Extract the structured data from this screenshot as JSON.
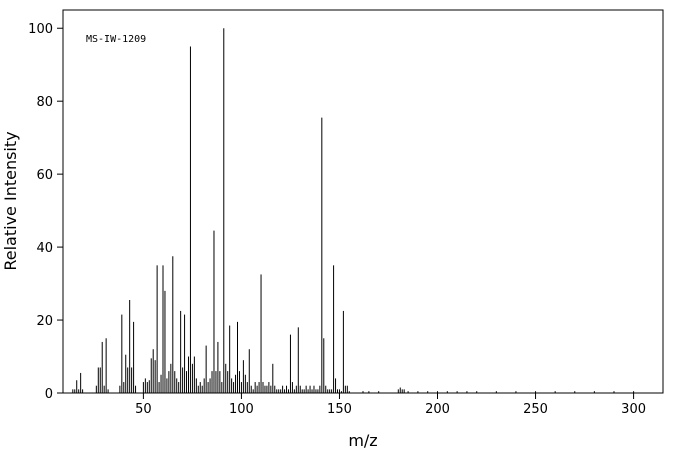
{
  "chart_data": {
    "type": "bar",
    "annotation": "MS-IW-1209",
    "x_label": "m/z",
    "y_label": "Relative Intensity",
    "color": "#000000",
    "xlim": [
      9,
      315
    ],
    "ylim": [
      0,
      105
    ],
    "xticks": [
      50,
      100,
      150,
      200,
      250,
      300
    ],
    "yticks": [
      0,
      20,
      40,
      60,
      80,
      100
    ],
    "x": [
      14,
      15,
      16,
      17,
      18,
      19,
      26,
      27,
      28,
      29,
      30,
      31,
      32,
      38,
      39,
      40,
      41,
      42,
      43,
      44,
      45,
      46,
      50,
      51,
      52,
      53,
      54,
      55,
      56,
      57,
      58,
      59,
      60,
      61,
      62,
      63,
      64,
      65,
      66,
      67,
      68,
      69,
      70,
      71,
      72,
      73,
      74,
      75,
      76,
      77,
      78,
      79,
      80,
      81,
      82,
      83,
      84,
      85,
      86,
      87,
      88,
      89,
      90,
      91,
      92,
      93,
      94,
      95,
      96,
      97,
      98,
      99,
      100,
      101,
      102,
      103,
      104,
      105,
      106,
      107,
      108,
      109,
      110,
      111,
      112,
      113,
      114,
      115,
      116,
      117,
      118,
      119,
      120,
      121,
      122,
      123,
      124,
      125,
      126,
      127,
      128,
      129,
      130,
      131,
      132,
      133,
      134,
      135,
      136,
      137,
      138,
      139,
      140,
      141,
      142,
      143,
      144,
      145,
      146,
      147,
      148,
      149,
      150,
      151,
      152,
      153,
      154,
      155,
      162,
      165,
      170,
      180,
      181,
      182,
      183,
      185,
      190,
      195,
      200,
      205,
      210,
      215,
      220,
      230,
      240,
      250,
      260,
      270,
      280,
      290,
      300
    ],
    "values": [
      1,
      1,
      3.5,
      1,
      5.5,
      1,
      2,
      7,
      7,
      14,
      2,
      15,
      1,
      2,
      21.5,
      3,
      10.5,
      7,
      25.5,
      7,
      19.5,
      2,
      3,
      4,
      3,
      3.5,
      9.5,
      12,
      9,
      35,
      3,
      5,
      35,
      28,
      4,
      6,
      8,
      37.5,
      6,
      4,
      3,
      22.5,
      7,
      21.5,
      6,
      10,
      95,
      8,
      10,
      4,
      2,
      3,
      2,
      4,
      13,
      3,
      4,
      6,
      44.5,
      6,
      14,
      6,
      3,
      100,
      8,
      6,
      18.5,
      4,
      3,
      5,
      19.5,
      6,
      3,
      9,
      5,
      3,
      12,
      2,
      1,
      3,
      2,
      3,
      32.5,
      3,
      2,
      2,
      3,
      2,
      8,
      2,
      1,
      1,
      1,
      2,
      1,
      2,
      1,
      16,
      3,
      1,
      2,
      18,
      2,
      1,
      1,
      2,
      1,
      2,
      1,
      2,
      1,
      1,
      2,
      75.5,
      15,
      2,
      1,
      1,
      1,
      35,
      4,
      1,
      1,
      0.5,
      22.5,
      2,
      2,
      0.5,
      0.5,
      0.5,
      0.5,
      1,
      1.5,
      1,
      1,
      0.5,
      0.5,
      0.5,
      0.5,
      0.5,
      0.5,
      0.5,
      0.5,
      0.5,
      0.5,
      0.5,
      0.5,
      0.5,
      0.5,
      0.5,
      0.5
    ]
  }
}
